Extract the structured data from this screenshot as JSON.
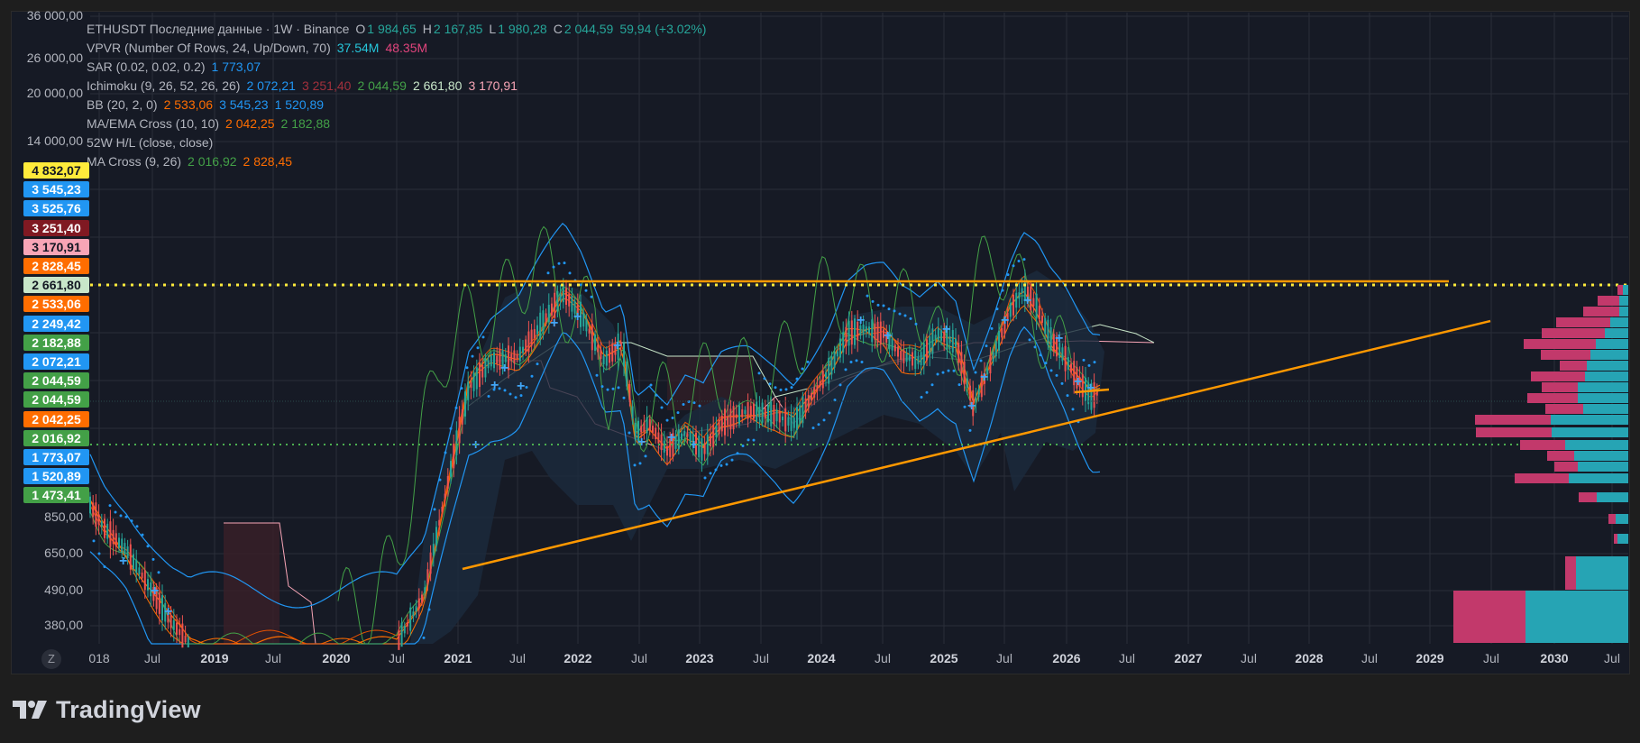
{
  "legend": {
    "symbol_line": {
      "title": "ETHUSDT Последние данные · 1W · Binance",
      "o_label": "O",
      "o": "1 984,65",
      "h_label": "H",
      "h": "2 167,85",
      "l_label": "L",
      "l": "1 980,28",
      "c_label": "C",
      "c": "2 044,59",
      "change": "59,94 (+3.02%)"
    },
    "vpvr": {
      "name": "VPVR (Number Of Rows, 24, Up/Down, 70)",
      "v1": "37.54M",
      "v2": "48.35M"
    },
    "sar": {
      "name": "SAR (0.02, 0.02, 0.2)",
      "v1": "1 773,07"
    },
    "ichimoku": {
      "name": "Ichimoku (9, 26, 52, 26, 26)",
      "v1": "2 072,21",
      "v2": "3 251,40",
      "v3": "2 044,59",
      "v4": "2 661,80",
      "v5": "3 170,91"
    },
    "bb": {
      "name": "BB (20, 2, 0)",
      "v1": "2 533,06",
      "v2": "3 545,23",
      "v3": "1 520,89"
    },
    "ma_ema": {
      "name": "MA/EMA Cross (10, 10)",
      "v1": "2 042,25",
      "v2": "2 182,88"
    },
    "w52": {
      "name": "52W H/L (close, close)"
    },
    "ma_cross": {
      "name": "MA Cross (9, 26)",
      "v1": "2 016,92",
      "v2": "2 828,45"
    }
  },
  "y_axis_ticks": [
    "36 000,00",
    "26 000,00",
    "20 000,00",
    "14 000,00",
    "850,00",
    "650,00",
    "490,00",
    "380,00"
  ],
  "price_tags": [
    {
      "value": "4 832,07",
      "bg": "#ffeb3b",
      "fg": "#131722"
    },
    {
      "value": "3 545,23",
      "bg": "#2196f3",
      "fg": "#ffffff"
    },
    {
      "value": "3 525,76",
      "bg": "#2196f3",
      "fg": "#ffffff"
    },
    {
      "value": "3 251,40",
      "bg": "#801922",
      "fg": "#ffffff"
    },
    {
      "value": "3 170,91",
      "bg": "#f8a5b6",
      "fg": "#131722"
    },
    {
      "value": "2 828,45",
      "bg": "#ff6d00",
      "fg": "#ffffff"
    },
    {
      "value": "2 661,80",
      "bg": "#c8e6c9",
      "fg": "#131722"
    },
    {
      "value": "2 533,06",
      "bg": "#ff6d00",
      "fg": "#ffffff"
    },
    {
      "value": "2 249,42",
      "bg": "#2196f3",
      "fg": "#ffffff"
    },
    {
      "value": "2 182,88",
      "bg": "#43a047",
      "fg": "#ffffff"
    },
    {
      "value": "2 072,21",
      "bg": "#2196f3",
      "fg": "#ffffff"
    },
    {
      "value": "2 044,59",
      "bg": "#43a047",
      "fg": "#ffffff"
    },
    {
      "value": "2 044,59",
      "bg": "#43a047",
      "fg": "#ffffff"
    },
    {
      "value": "2 042,25",
      "bg": "#ff6d00",
      "fg": "#ffffff"
    },
    {
      "value": "2 016,92",
      "bg": "#43a047",
      "fg": "#ffffff"
    },
    {
      "value": "1 773,07",
      "bg": "#2196f3",
      "fg": "#ffffff"
    },
    {
      "value": "1 520,89",
      "bg": "#2196f3",
      "fg": "#ffffff"
    },
    {
      "value": "1 473,41",
      "bg": "#43a047",
      "fg": "#ffffff"
    }
  ],
  "x_axis_ticks": [
    {
      "label": "018",
      "year": false
    },
    {
      "label": "Jul",
      "year": false
    },
    {
      "label": "2019",
      "year": true
    },
    {
      "label": "Jul",
      "year": false
    },
    {
      "label": "2020",
      "year": true
    },
    {
      "label": "Jul",
      "year": false
    },
    {
      "label": "2021",
      "year": true
    },
    {
      "label": "Jul",
      "year": false
    },
    {
      "label": "2022",
      "year": true
    },
    {
      "label": "Jul",
      "year": false
    },
    {
      "label": "2023",
      "year": true
    },
    {
      "label": "Jul",
      "year": false
    },
    {
      "label": "2024",
      "year": true
    },
    {
      "label": "Jul",
      "year": false
    },
    {
      "label": "2025",
      "year": true
    },
    {
      "label": "Jul",
      "year": false
    },
    {
      "label": "2026",
      "year": true
    },
    {
      "label": "Jul",
      "year": false
    },
    {
      "label": "2027",
      "year": true
    },
    {
      "label": "Jul",
      "year": false
    },
    {
      "label": "2028",
      "year": true
    },
    {
      "label": "Jul",
      "year": false
    },
    {
      "label": "2029",
      "year": true
    },
    {
      "label": "Jul",
      "year": false
    },
    {
      "label": "2030",
      "year": true
    },
    {
      "label": "Jul",
      "year": false
    }
  ],
  "z_button": "Z",
  "brand": {
    "name": "TradingView",
    "icon": "tradingview-logo-icon"
  },
  "colors": {
    "background": "#161a25",
    "grid": "#2a2e39",
    "up": "#26a69a",
    "down": "#ef5350",
    "bb": "#2196f3",
    "trendline": "#ff9800",
    "high_line": "#ffeb3b",
    "low_line": "#4caf50",
    "vp_up": "#26a4b4",
    "vp_down": "#c2396b"
  }
}
